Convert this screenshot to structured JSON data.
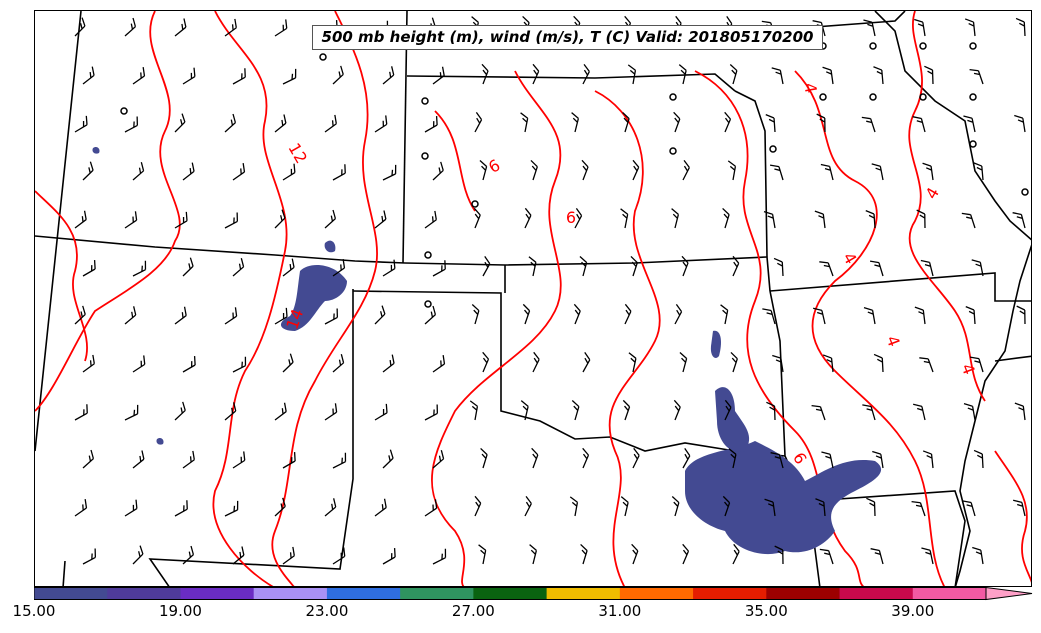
{
  "title": "500 mb height (m), wind (m/s), T (C) Valid: 201805170200",
  "contour_labels": [
    {
      "text": "12",
      "name": "contour-label-12",
      "rot": 60
    },
    {
      "text": "6",
      "name": "contour-label-6a",
      "rot": -30
    },
    {
      "text": "6",
      "name": "contour-label-6b",
      "rot": 0
    },
    {
      "text": "4",
      "name": "contour-label-4a",
      "rot": 80
    },
    {
      "text": "4",
      "name": "contour-label-4b",
      "rot": 60
    },
    {
      "text": "4",
      "name": "contour-label-4c",
      "rot": -60
    },
    {
      "text": "4",
      "name": "contour-label-4d",
      "rot": 70
    },
    {
      "text": "4",
      "name": "contour-label-4e",
      "rot": 70
    },
    {
      "text": "6",
      "name": "contour-label-6c",
      "rot": 60
    },
    {
      "text": "14",
      "name": "contour-label-14",
      "rot": -70
    }
  ],
  "colorbar": {
    "ticks": [
      "15.00",
      "19.00",
      "23.00",
      "27.00",
      "31.00",
      "35.00",
      "39.00"
    ],
    "colors": [
      "#434a92",
      "#4f3b9a",
      "#6a2cc4",
      "#a991f5",
      "#2f6ee0",
      "#2f9460",
      "#0a6310",
      "#f0bd00",
      "#ff6a00",
      "#e51d00",
      "#9c0000",
      "#c8094c",
      "#f25aa3",
      "#ffa0c8"
    ]
  },
  "colors": {
    "temp_contour": "#ff0000",
    "borders": "#000000",
    "shading": "#434a92"
  }
}
